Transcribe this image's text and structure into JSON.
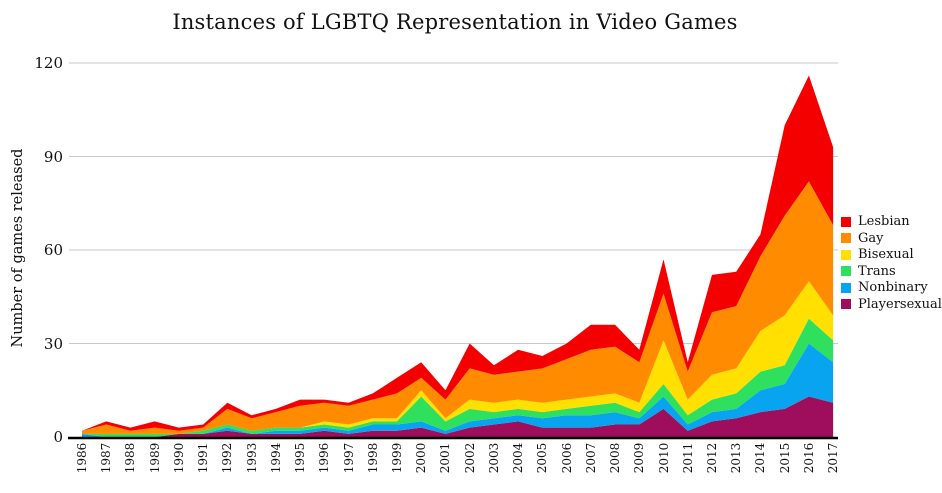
{
  "title": "Instances of LGBTQ Representation in Video Games",
  "y_axis": {
    "label": "Number of games released",
    "ticks": [
      0,
      30,
      60,
      90,
      120
    ]
  },
  "legend_order": [
    "Lesbian",
    "Gay",
    "Bisexual",
    "Trans",
    "Nonbinary",
    "Playersexual"
  ],
  "chart_data": {
    "type": "area",
    "stacked": true,
    "title": "Instances of LGBTQ Representation in Video Games",
    "xlabel": "",
    "ylabel": "Number of games released",
    "ylim": [
      0,
      120
    ],
    "grid": "horizontal",
    "legend_position": "right",
    "categories": [
      1986,
      1987,
      1988,
      1989,
      1990,
      1991,
      1992,
      1993,
      1994,
      1995,
      1996,
      1997,
      1998,
      1999,
      2000,
      2001,
      2002,
      2003,
      2004,
      2005,
      2006,
      2007,
      2008,
      2009,
      2010,
      2011,
      2012,
      2013,
      2014,
      2015,
      2016,
      2017
    ],
    "stack_order": "bottom to top",
    "series": [
      {
        "name": "Playersexual",
        "color": "#9E0E5C",
        "values": [
          0,
          0,
          0,
          0,
          1,
          1,
          2,
          1,
          1,
          1,
          2,
          1,
          2,
          2,
          3,
          1,
          3,
          4,
          5,
          3,
          3,
          3,
          4,
          4,
          9,
          2,
          5,
          6,
          8,
          9,
          13,
          11
        ]
      },
      {
        "name": "Nonbinary",
        "color": "#09A4EF",
        "values": [
          1,
          0,
          0,
          0,
          0,
          0,
          1,
          0,
          1,
          1,
          1,
          1,
          2,
          2,
          2,
          1,
          2,
          2,
          2,
          3,
          4,
          4,
          4,
          2,
          4,
          2,
          3,
          3,
          7,
          8,
          17,
          13
        ]
      },
      {
        "name": "Trans",
        "color": "#2EE05E",
        "values": [
          0,
          1,
          1,
          1,
          0,
          1,
          1,
          1,
          1,
          1,
          1,
          1,
          1,
          1,
          8,
          3,
          4,
          2,
          2,
          2,
          2,
          3,
          3,
          2,
          4,
          3,
          4,
          5,
          6,
          6,
          8,
          7
        ]
      },
      {
        "name": "Bisexual",
        "color": "#FFE000",
        "values": [
          0,
          0,
          0,
          0,
          0,
          0,
          0,
          0,
          0,
          0,
          1,
          1,
          1,
          1,
          2,
          1,
          3,
          3,
          3,
          3,
          3,
          3,
          3,
          3,
          14,
          5,
          8,
          8,
          13,
          16,
          12,
          8
        ]
      },
      {
        "name": "Gay",
        "color": "#FF8C00",
        "values": [
          1,
          3,
          1,
          2,
          1,
          1,
          5,
          4,
          5,
          7,
          6,
          6,
          6,
          8,
          4,
          6,
          10,
          9,
          9,
          11,
          13,
          15,
          15,
          13,
          15,
          9,
          20,
          20,
          24,
          32,
          32,
          29
        ]
      },
      {
        "name": "Lesbian",
        "color": "#F50000",
        "values": [
          0,
          1,
          1,
          2,
          1,
          1,
          2,
          1,
          1,
          2,
          1,
          1,
          2,
          5,
          5,
          3,
          8,
          3,
          7,
          4,
          5,
          8,
          7,
          4,
          11,
          3,
          12,
          11,
          7,
          29,
          34,
          25
        ]
      }
    ]
  }
}
